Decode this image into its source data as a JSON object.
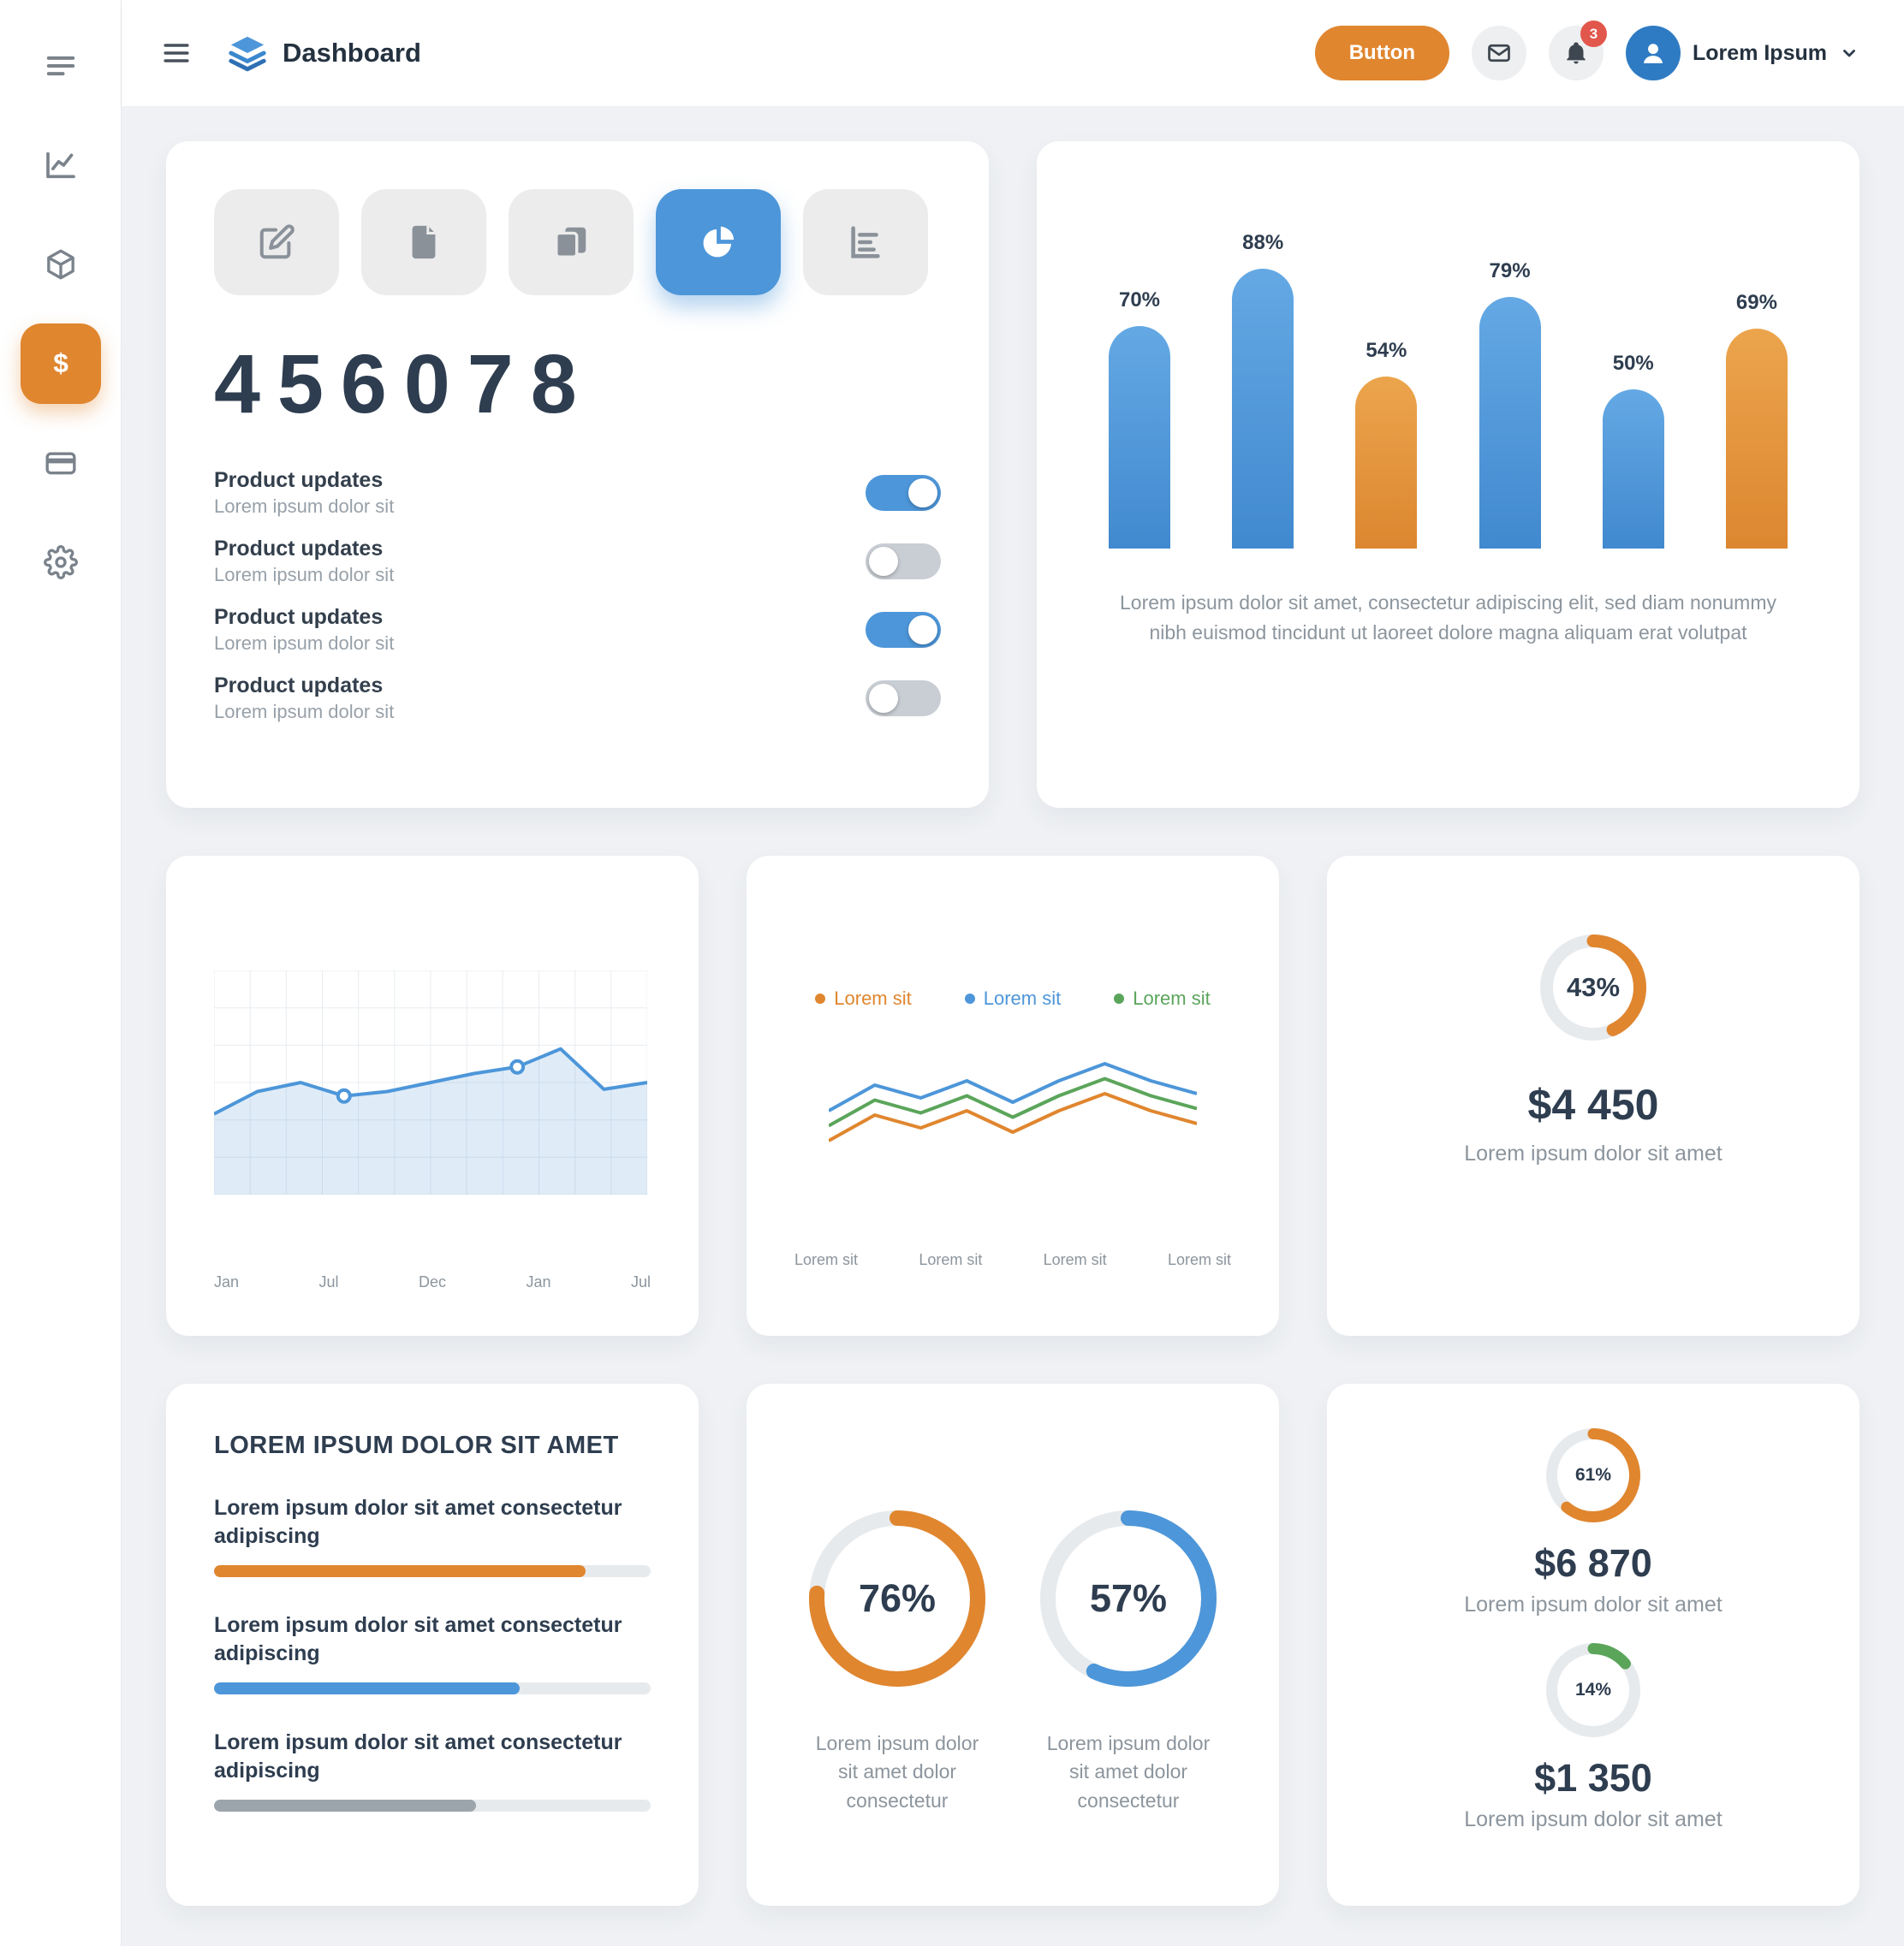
{
  "colors": {
    "blue": "#4D96D9",
    "orange": "#E0862F",
    "green": "#5BA55B",
    "gray": "#9CA4AC",
    "navy": "#2E3D4F",
    "gray_text": "#8C959D",
    "track": "#E7EAED",
    "red": "#E2574C"
  },
  "sidebar": {
    "items": [
      {
        "icon": "menu-icon",
        "active": false
      },
      {
        "icon": "line-chart-icon",
        "active": false
      },
      {
        "icon": "cube-icon",
        "active": false
      },
      {
        "icon": "dollar-icon",
        "active": true
      },
      {
        "icon": "credit-card-icon",
        "active": false
      },
      {
        "icon": "gear-icon",
        "active": false
      }
    ]
  },
  "header": {
    "title": "Dashboard",
    "button_label": "Button",
    "notification_count": "3",
    "user_name": "Lorem Ipsum"
  },
  "stats_card": {
    "tools": [
      "edit-icon",
      "file-icon",
      "news-icon",
      "pie-icon",
      "bar-icon"
    ],
    "active_tool_index": 3,
    "value": "456078",
    "toggles": [
      {
        "title": "Product updates",
        "subtitle": "Lorem ipsum dolor sit",
        "on": true
      },
      {
        "title": "Product updates",
        "subtitle": "Lorem ipsum dolor sit",
        "on": false
      },
      {
        "title": "Product updates",
        "subtitle": "Lorem ipsum dolor sit",
        "on": true
      },
      {
        "title": "Product updates",
        "subtitle": "Lorem ipsum dolor sit",
        "on": false
      }
    ]
  },
  "bar_chart": {
    "type": "bar",
    "values": [
      70,
      88,
      54,
      79,
      50,
      69
    ],
    "labels": [
      "70%",
      "88%",
      "54%",
      "79%",
      "50%",
      "69%"
    ],
    "bar_colors": [
      "blue",
      "blue",
      "orange",
      "blue",
      "blue",
      "orange"
    ],
    "ylim": [
      0,
      100
    ],
    "caption": "Lorem ipsum dolor sit amet, consectetur adipiscing elit, sed diam nonummy nibh euismod tincidunt ut laoreet dolore magna aliquam erat volutpat"
  },
  "area_chart": {
    "type": "area",
    "x_labels": [
      "Jan",
      "Jul",
      "Dec",
      "Jan",
      "Jul"
    ],
    "values": [
      36,
      46,
      50,
      44,
      46,
      50,
      54,
      57,
      65,
      47,
      50
    ],
    "marker_indices": [
      3,
      7
    ],
    "color": "blue",
    "grid": true
  },
  "line_chart": {
    "type": "line",
    "legend": [
      {
        "label": "Lorem sit",
        "color": "orange"
      },
      {
        "label": "Lorem sit",
        "color": "blue"
      },
      {
        "label": "Lorem sit",
        "color": "green"
      }
    ],
    "x_labels": [
      "Lorem sit",
      "Lorem sit",
      "Lorem sit",
      "Lorem sit"
    ],
    "series": [
      {
        "name": "blue",
        "values": [
          32,
          44,
          38,
          46,
          36,
          46,
          54,
          46,
          40
        ]
      },
      {
        "name": "green",
        "values": [
          25,
          37,
          31,
          39,
          29,
          39,
          47,
          39,
          33
        ]
      },
      {
        "name": "orange",
        "values": [
          18,
          30,
          24,
          32,
          22,
          32,
          40,
          32,
          26
        ]
      }
    ]
  },
  "gauge_card": {
    "type": "donut",
    "percent": 43,
    "color": "orange",
    "amount": "$4 450",
    "caption": "Lorem ipsum dolor sit amet"
  },
  "progress_card": {
    "title": "LOREM IPSUM DOLOR SIT AMET",
    "items": [
      {
        "label": "Lorem ipsum dolor sit amet consectetur adipiscing",
        "percent": 85,
        "color": "orange"
      },
      {
        "label": "Lorem ipsum dolor sit amet consectetur adipiscing",
        "percent": 70,
        "color": "blue"
      },
      {
        "label": "Lorem ipsum dolor sit amet consectetur adipiscing",
        "percent": 60,
        "color": "gray"
      }
    ]
  },
  "donuts_card": {
    "type": "donut",
    "items": [
      {
        "percent": 76,
        "color": "orange",
        "caption": "Lorem ipsum dolor sit amet dolor consectetur"
      },
      {
        "percent": 57,
        "color": "blue",
        "caption": "Lorem ipsum dolor sit amet dolor consectetur"
      }
    ]
  },
  "mini_card": {
    "type": "donut",
    "items": [
      {
        "percent": 61,
        "color": "orange",
        "amount": "$6 870",
        "caption": "Lorem ipsum dolor sit amet"
      },
      {
        "percent": 14,
        "color": "green",
        "amount": "$1 350",
        "caption": "Lorem ipsum dolor sit amet"
      }
    ]
  }
}
